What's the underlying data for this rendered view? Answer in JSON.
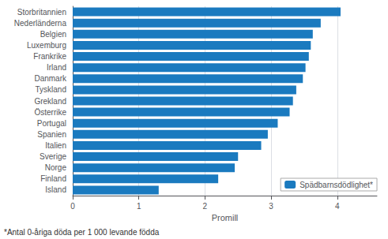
{
  "chart_data": {
    "type": "bar",
    "orientation": "horizontal",
    "categories": [
      "Island",
      "Finland",
      "Norge",
      "Sverige",
      "Italien",
      "Spanien",
      "Portugal",
      "Österrike",
      "Grekland",
      "Tyskland",
      "Danmark",
      "Irland",
      "Frankrike",
      "Luxemburg",
      "Belgien",
      "Nederländerna",
      "Storbritannien"
    ],
    "series": [
      {
        "name": "Spädbarnsdödlighet*",
        "color": "#1a7abf",
        "values": [
          1.3,
          2.2,
          2.45,
          2.5,
          2.85,
          2.95,
          3.1,
          3.28,
          3.33,
          3.38,
          3.48,
          3.52,
          3.57,
          3.6,
          3.63,
          3.75,
          4.05
        ]
      }
    ],
    "xlabel": "Promill",
    "xlim": [
      0,
      4.6
    ],
    "xticks": [
      0,
      1,
      2,
      3,
      4
    ],
    "grid": true,
    "legend": "lower right",
    "annotations": [
      "*Antal 0-åriga döda per 1 000 levande födda"
    ]
  }
}
